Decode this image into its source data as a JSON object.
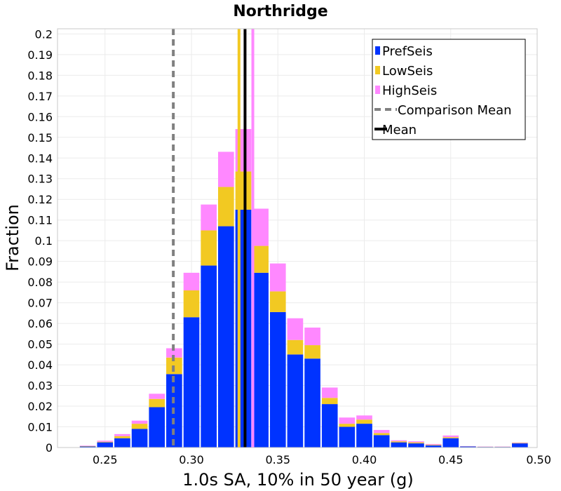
{
  "chart_data": {
    "type": "bar",
    "title": "Northridge",
    "xlabel": "1.0s SA, 10% in 50 year (g)",
    "ylabel": "Fraction",
    "xlim": [
      0.2225,
      0.5
    ],
    "ylim": [
      0,
      0.2025
    ],
    "x_ticks": [
      "0.25",
      "0.30",
      "0.35",
      "0.40",
      "0.45",
      "0.50"
    ],
    "y_ticks": [
      "0",
      "0.01",
      "0.02",
      "0.03",
      "0.04",
      "0.05",
      "0.06",
      "0.07",
      "0.08",
      "0.09",
      "0.1",
      "0.11",
      "0.12",
      "0.13",
      "0.14",
      "0.15",
      "0.16",
      "0.17",
      "0.18",
      "0.19",
      "0.2"
    ],
    "grid": true,
    "stacked": true,
    "bin_width": 0.01,
    "bin_centers": [
      0.24,
      0.25,
      0.26,
      0.27,
      0.28,
      0.29,
      0.3,
      0.31,
      0.32,
      0.33,
      0.34,
      0.35,
      0.36,
      0.37,
      0.38,
      0.39,
      0.4,
      0.41,
      0.42,
      0.43,
      0.44,
      0.45,
      0.46,
      0.47,
      0.48,
      0.49
    ],
    "series": [
      {
        "name": "PrefSeis",
        "color": "#0033ff",
        "values": [
          0.0005,
          0.0025,
          0.0045,
          0.009,
          0.0195,
          0.0355,
          0.063,
          0.088,
          0.107,
          0.115,
          0.0845,
          0.0655,
          0.045,
          0.043,
          0.021,
          0.01,
          0.0115,
          0.006,
          0.0025,
          0.002,
          0.001,
          0.0045,
          0.0005,
          0.0003,
          0.0003,
          0.002
        ]
      },
      {
        "name": "LowSeis",
        "color": "#f2c922",
        "values": [
          0.0002,
          0.0003,
          0.001,
          0.0025,
          0.004,
          0.008,
          0.013,
          0.017,
          0.019,
          0.0185,
          0.013,
          0.01,
          0.007,
          0.0065,
          0.003,
          0.0015,
          0.002,
          0.001,
          0.0005,
          0.0005,
          0.0003,
          0.0005,
          0.0001,
          0.0001,
          0.0001,
          0.0002
        ]
      },
      {
        "name": "HighSeis",
        "color": "#ff88ff",
        "values": [
          0.0002,
          0.0005,
          0.001,
          0.0015,
          0.0025,
          0.0045,
          0.0085,
          0.0125,
          0.017,
          0.0205,
          0.018,
          0.0135,
          0.0105,
          0.0085,
          0.005,
          0.003,
          0.002,
          0.0015,
          0.0005,
          0.0005,
          0.0004,
          0.0008,
          0.0001,
          0.0001,
          0.0001,
          0.0002
        ]
      }
    ],
    "vertical_lines": [
      {
        "name": "Comparison Mean",
        "x": 0.2895,
        "color": "#808080",
        "style": "dashed",
        "in_legend": true
      },
      {
        "name": "Mean",
        "x": 0.331,
        "color": "#000000",
        "style": "solid",
        "in_legend": true
      },
      {
        "name": "LowSeis mean",
        "x": 0.3275,
        "color": "#f2c922",
        "style": "solid",
        "in_legend": false
      },
      {
        "name": "HighSeis mean",
        "x": 0.3355,
        "color": "#ff88ff",
        "style": "solid",
        "in_legend": false
      }
    ],
    "legend": {
      "placement": "top-right",
      "entries": [
        {
          "label": "PrefSeis",
          "color": "#0033ff",
          "kind": "square"
        },
        {
          "label": "LowSeis",
          "color": "#f2c922",
          "kind": "square"
        },
        {
          "label": "HighSeis",
          "color": "#ff88ff",
          "kind": "square"
        },
        {
          "label": "Comparison Mean",
          "color": "#808080",
          "kind": "dashed-line"
        },
        {
          "label": "Mean",
          "color": "#000000",
          "kind": "solid-line"
        }
      ]
    }
  }
}
